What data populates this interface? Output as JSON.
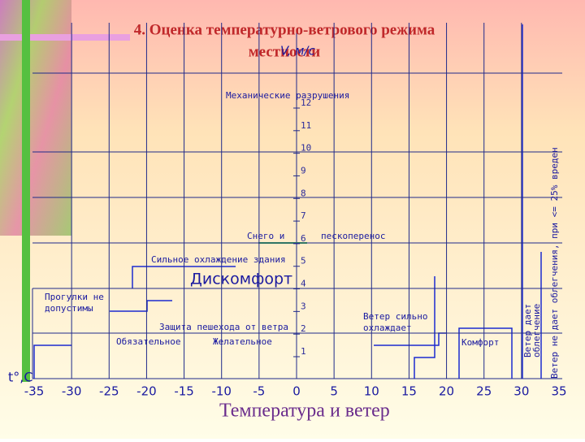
{
  "title": [
    "4. Оценка температурно-ветрового режима",
    "местности"
  ],
  "caption": "Температура и ветер",
  "y_axis_label": "V, м/с",
  "x_axis_label": "t°,C",
  "x_ticks": [
    "-35",
    "-30",
    "-25",
    "-20",
    "-15",
    "-10",
    "-5",
    "0",
    "5",
    "10",
    "15",
    "20",
    "25",
    "30",
    "35"
  ],
  "y_ticks": [
    "1",
    "2",
    "3",
    "4",
    "5",
    "6",
    "7",
    "8",
    "9",
    "10",
    "11",
    "12"
  ],
  "zones": [
    "Механические разрушения",
    "Снего и",
    "пескоперенос",
    "Сильное охлаждение здания",
    "Дискомфорт",
    "Прогулки не",
    "допустимы",
    "Защита пешехода от ветра",
    "Ветер сильно",
    "охлаждает",
    "Обязательное",
    "Желательное",
    "Комфорт"
  ],
  "vertical_notes": [
    "Ветер не дает облегчения, при <= 25% вреден",
    "Ветер дает",
    "облегчение"
  ]
}
